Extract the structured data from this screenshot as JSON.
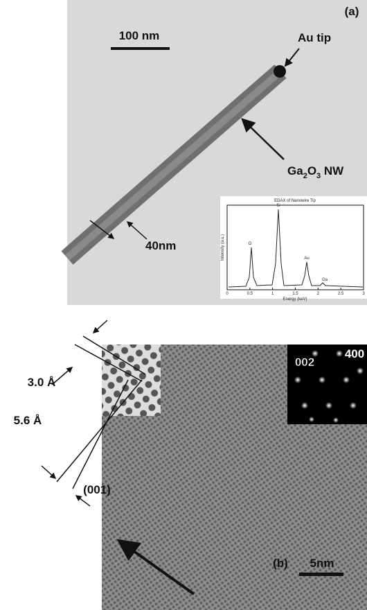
{
  "panel_a": {
    "label": "(a)",
    "scale_bar": "100 nm",
    "tip_label": "Au tip",
    "nw_label": {
      "element1": "Ga",
      "sub1": "2",
      "element2": "O",
      "sub2": "3",
      "suffix": " NW"
    },
    "width_label": "40nm",
    "inset": {
      "title": "EDAX of Nanowire Tip",
      "x_label": "Energy (keV)",
      "y_label": "Intensity (a.u.)",
      "xticks": [
        0,
        0.5,
        1,
        1.5,
        2,
        2.5,
        3
      ],
      "peaks": [
        "O",
        "Si",
        "Au",
        "Ga"
      ]
    }
  },
  "panel_b": {
    "label": "(b)",
    "scale_bar": "5nm",
    "spacing_1": "3.0 Å",
    "spacing_2": "5.6 Å",
    "direction": "(001)",
    "diffraction_1": "002",
    "diffraction_2": "400"
  }
}
